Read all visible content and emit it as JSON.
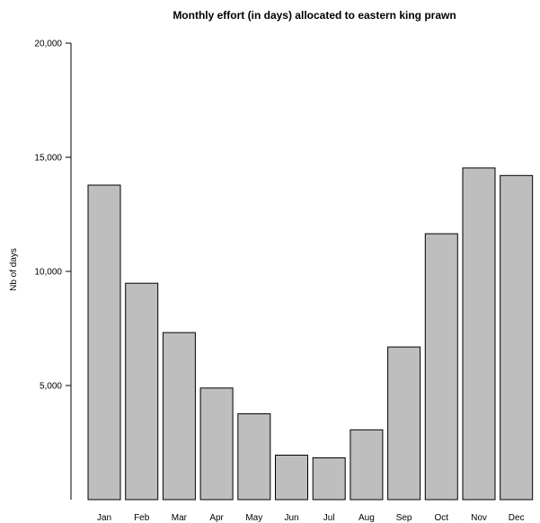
{
  "chart_data": {
    "type": "bar",
    "title": "Monthly effort (in days) allocated to eastern king prawn",
    "xlabel": "",
    "ylabel": "Nb of days",
    "categories": [
      "Jan",
      "Feb",
      "Mar",
      "Apr",
      "May",
      "Jun",
      "Jul",
      "Aug",
      "Sep",
      "Oct",
      "Nov",
      "Dec"
    ],
    "values": [
      13780,
      9480,
      7320,
      4890,
      3760,
      1950,
      1830,
      3060,
      6690,
      11650,
      14530,
      14200
    ],
    "ylim": [
      0,
      20000
    ],
    "yticks": [
      5000,
      10000,
      15000,
      20000
    ],
    "ytick_labels": [
      "5,000",
      "10,000",
      "15,000",
      "20,000"
    ],
    "grid": false,
    "colors": {
      "bar_fill": "#bebebe",
      "bar_stroke": "#000000"
    }
  }
}
